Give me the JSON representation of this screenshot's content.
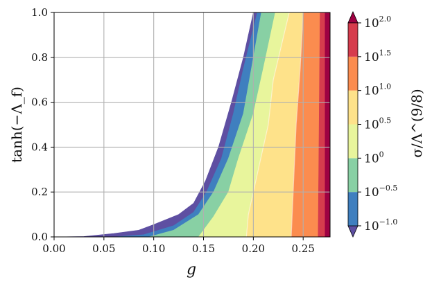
{
  "chart_data": {
    "type": "contourf",
    "xlabel": "g",
    "ylabel": "tanh(−Λ_f)",
    "xlim": [
      0.0,
      0.277
    ],
    "ylim": [
      0.0,
      1.0
    ],
    "x_ticks": [
      "0.00",
      "0.05",
      "0.10",
      "0.15",
      "0.20",
      "0.25"
    ],
    "y_ticks": [
      "0.0",
      "0.2",
      "0.4",
      "0.6",
      "0.8",
      "1.0"
    ],
    "grid": true,
    "colorbar": {
      "label": "σ/Λ^(9/8)",
      "scale": "log",
      "extend": "both",
      "ticks": [
        {
          "base": "10",
          "exp": "−1.0",
          "value": -1.0
        },
        {
          "base": "10",
          "exp": "−0.5",
          "value": -0.5
        },
        {
          "base": "10",
          "exp": "0",
          "value": 0.0
        },
        {
          "base": "10",
          "exp": "0.5",
          "value": 0.5
        },
        {
          "base": "10",
          "exp": "1.0",
          "value": 1.0
        },
        {
          "base": "10",
          "exp": "1.5",
          "value": 1.5
        },
        {
          "base": "10",
          "exp": "2.0",
          "value": 2.0
        }
      ],
      "levels": [
        {
          "range": [
            -1.0,
            -0.75
          ],
          "color": "#5e4fa2"
        },
        {
          "range": [
            -0.75,
            -0.5
          ],
          "color": "#3f7fbf"
        },
        {
          "range": [
            -0.5,
            0.0
          ],
          "color": "#88d0a4"
        },
        {
          "range": [
            0.0,
            0.5
          ],
          "color": "#e8f59c"
        },
        {
          "range": [
            0.5,
            1.0
          ],
          "color": "#fee28a"
        },
        {
          "range": [
            1.0,
            1.5
          ],
          "color": "#fb8c4f"
        },
        {
          "range": [
            1.5,
            1.75
          ],
          "color": "#d63c4d"
        },
        {
          "range": [
            1.75,
            2.0
          ],
          "color": "#9e0142"
        }
      ]
    },
    "contour_boundaries": [
      {
        "level": -1.0,
        "points": [
          [
            0.0,
            0.0
          ],
          [
            0.03,
            0.002
          ],
          [
            0.06,
            0.015
          ],
          [
            0.085,
            0.03
          ],
          [
            0.1,
            0.055
          ],
          [
            0.125,
            0.1
          ],
          [
            0.14,
            0.15
          ],
          [
            0.152,
            0.25
          ],
          [
            0.165,
            0.4
          ],
          [
            0.178,
            0.6
          ],
          [
            0.19,
            0.8
          ],
          [
            0.2,
            1.0
          ]
        ]
      },
      {
        "level": -0.75,
        "points": [
          [
            0.06,
            0.0
          ],
          [
            0.09,
            0.01
          ],
          [
            0.12,
            0.05
          ],
          [
            0.14,
            0.11
          ],
          [
            0.153,
            0.2
          ],
          [
            0.168,
            0.35
          ],
          [
            0.18,
            0.55
          ],
          [
            0.19,
            0.75
          ],
          [
            0.204,
            1.0
          ]
        ]
      },
      {
        "level": -0.5,
        "points": [
          [
            0.095,
            0.0
          ],
          [
            0.12,
            0.03
          ],
          [
            0.145,
            0.1
          ],
          [
            0.16,
            0.2
          ],
          [
            0.175,
            0.35
          ],
          [
            0.19,
            0.55
          ],
          [
            0.198,
            0.75
          ],
          [
            0.208,
            1.0
          ]
        ]
      },
      {
        "level": 0.0,
        "points": [
          [
            0.145,
            0.0
          ],
          [
            0.16,
            0.09
          ],
          [
            0.175,
            0.2
          ],
          [
            0.185,
            0.35
          ],
          [
            0.2,
            0.55
          ],
          [
            0.21,
            0.75
          ],
          [
            0.222,
            1.0
          ]
        ]
      },
      {
        "level": 0.5,
        "points": [
          [
            0.193,
            0.0
          ],
          [
            0.195,
            0.1
          ],
          [
            0.205,
            0.3
          ],
          [
            0.215,
            0.5
          ],
          [
            0.22,
            0.7
          ],
          [
            0.228,
            0.85
          ],
          [
            0.236,
            1.0
          ]
        ]
      },
      {
        "level": 1.0,
        "points": [
          [
            0.238,
            0.0
          ],
          [
            0.24,
            0.2
          ],
          [
            0.243,
            0.5
          ],
          [
            0.247,
            0.75
          ],
          [
            0.25,
            1.0
          ]
        ]
      },
      {
        "level": 1.5,
        "points": [
          [
            0.265,
            0.0
          ],
          [
            0.266,
            0.5
          ],
          [
            0.267,
            1.0
          ]
        ]
      },
      {
        "level": 1.75,
        "points": [
          [
            0.272,
            0.0
          ],
          [
            0.272,
            0.5
          ],
          [
            0.272,
            1.0
          ]
        ]
      }
    ]
  }
}
